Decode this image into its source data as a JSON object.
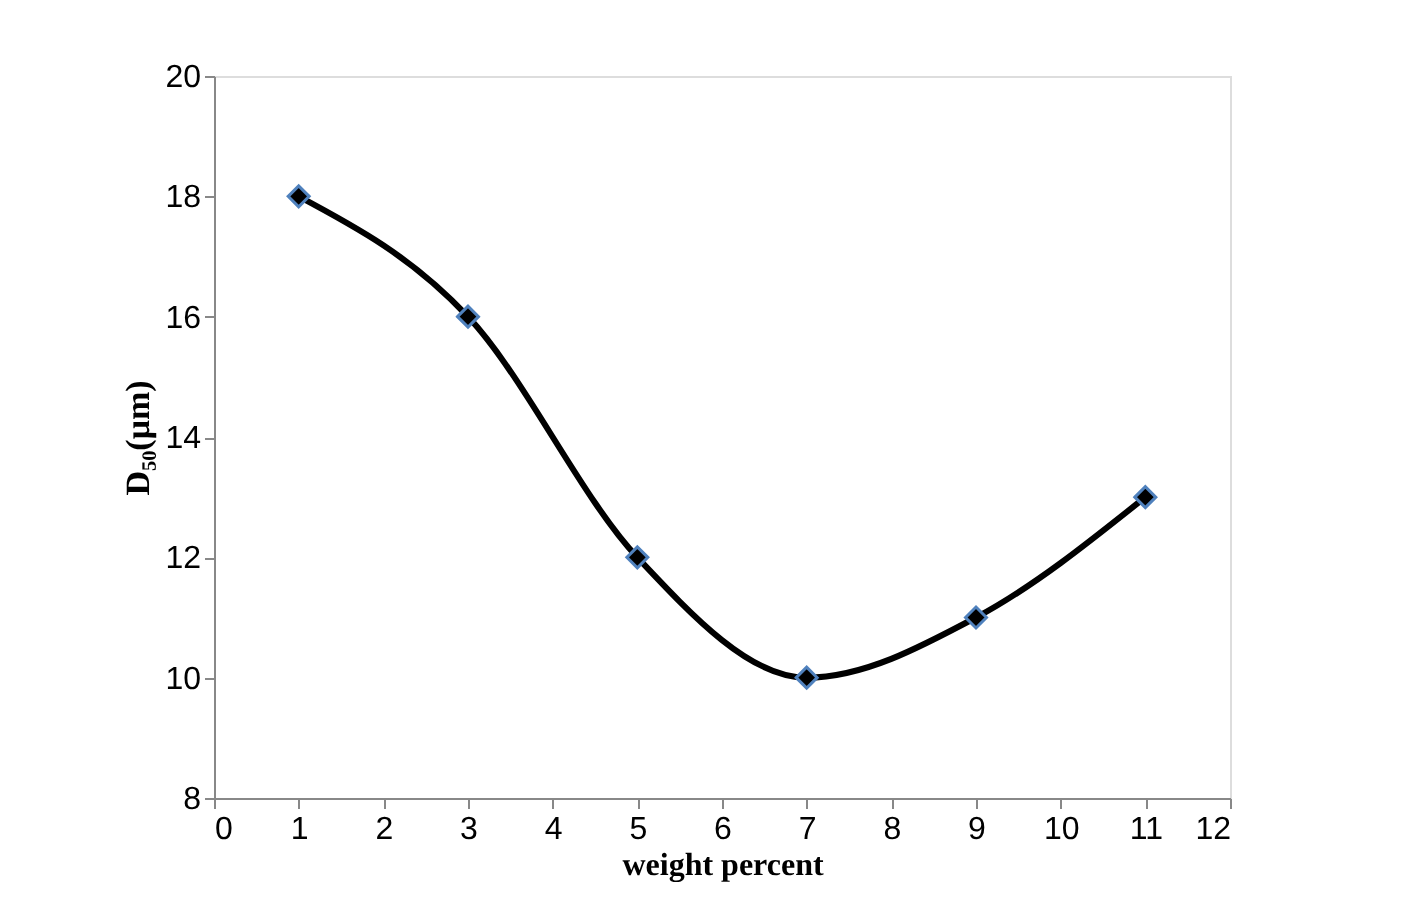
{
  "chart_data": {
    "type": "line",
    "xlabel": "weight percent",
    "ylabel": "D₅₀(μm)",
    "x": [
      1,
      3,
      5,
      7,
      9,
      11
    ],
    "series": [
      {
        "color": "#000000",
        "values": [
          18,
          16,
          12,
          10,
          11,
          13
        ]
      }
    ],
    "xlim": [
      0,
      12
    ],
    "xticks": [
      0,
      1,
      2,
      3,
      4,
      5,
      6,
      7,
      8,
      9,
      10,
      11,
      12
    ],
    "ylim": [
      8,
      20
    ],
    "yticks": [
      8,
      10,
      12,
      14,
      16,
      18,
      20
    ],
    "grid": false,
    "legend": false,
    "marker": "diamond",
    "line_style": "solid"
  }
}
